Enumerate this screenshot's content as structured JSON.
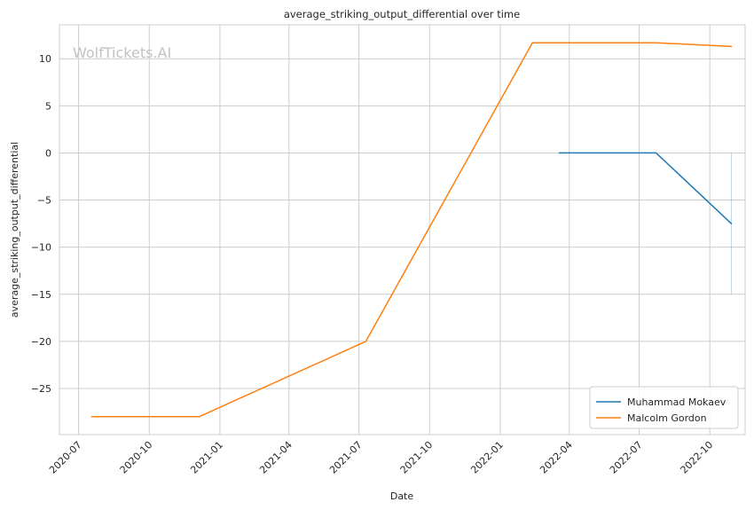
{
  "chart_data": {
    "type": "line",
    "title": "average_striking_output_differential over time",
    "xlabel": "Date",
    "ylabel": "average_striking_output_differential",
    "watermark": "WolfTickets.AI",
    "xlim": [
      "2020-06-06",
      "2022-11-16"
    ],
    "ylim": [
      -29.9,
      13.6
    ],
    "x_ticks": [
      "2020-07-01",
      "2020-10-01",
      "2021-01-01",
      "2021-04-01",
      "2021-07-01",
      "2021-10-01",
      "2022-01-01",
      "2022-04-01",
      "2022-07-01",
      "2022-10-01"
    ],
    "x_tick_labels": [
      "2020-07",
      "2020-10",
      "2021-01",
      "2021-04",
      "2021-07",
      "2021-10",
      "2022-01",
      "2022-04",
      "2022-07",
      "2022-10"
    ],
    "y_ticks": [
      10,
      5,
      0,
      -5,
      -10,
      -15,
      -20,
      -25
    ],
    "y_tick_labels": [
      "10",
      "5",
      "0",
      "−5",
      "−10",
      "−15",
      "−20",
      "−25"
    ],
    "grid": true,
    "legend_position": "lower-right",
    "series": [
      {
        "name": "Muhammad Mokaev",
        "color": "#1f77b4",
        "points": [
          {
            "x": "2022-03-19",
            "y": 0
          },
          {
            "x": "2022-07-23",
            "y": 0
          },
          {
            "x": "2022-10-29",
            "y": -7.5
          }
        ],
        "band": {
          "x": "2022-10-29",
          "ymin": -15,
          "ymax": 0
        }
      },
      {
        "name": "Malcolm Gordon",
        "color": "#ff7f0e",
        "points": [
          {
            "x": "2020-07-18",
            "y": -28
          },
          {
            "x": "2020-12-05",
            "y": -28
          },
          {
            "x": "2021-07-10",
            "y": -20
          },
          {
            "x": "2022-02-12",
            "y": 11.7
          },
          {
            "x": "2022-07-23",
            "y": 11.7
          },
          {
            "x": "2022-10-29",
            "y": 11.3
          }
        ]
      }
    ]
  }
}
